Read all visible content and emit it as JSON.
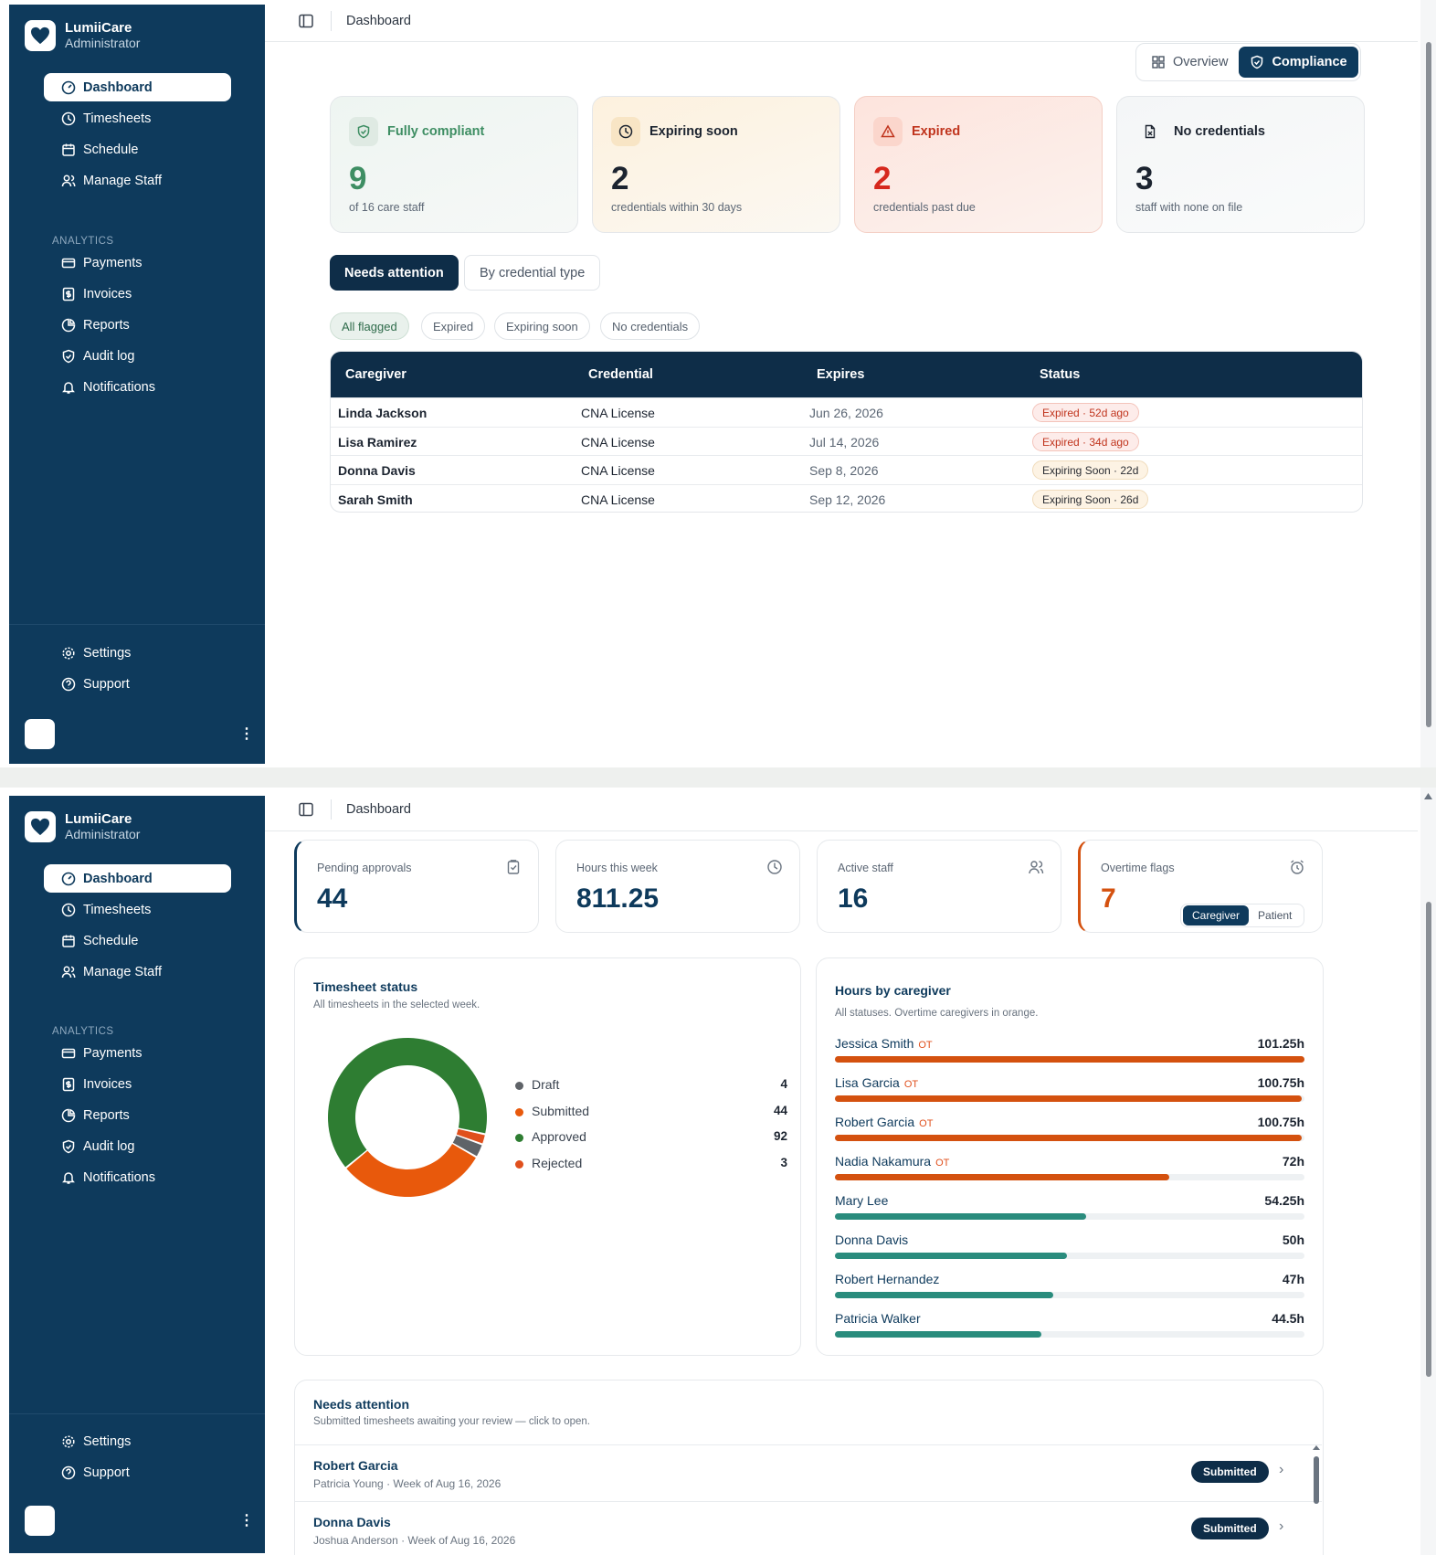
{
  "app": {
    "name": "LumiiCare",
    "role": "Administrator"
  },
  "nav": {
    "dashboard": "Dashboard",
    "timesheets": "Timesheets",
    "schedule": "Schedule",
    "manage_staff": "Manage Staff",
    "analytics_heading": "ANALYTICS",
    "payments": "Payments",
    "invoices": "Invoices",
    "reports": "Reports",
    "audit_log": "Audit log",
    "notifications": "Notifications",
    "settings": "Settings",
    "support": "Support",
    "more_menu": "⋮"
  },
  "header": {
    "breadcrumb": "Dashboard"
  },
  "compliance_view": {
    "view_toggle": {
      "overview": "Overview",
      "compliance": "Compliance",
      "selected": "Compliance"
    },
    "cards": {
      "compliant": {
        "title": "Fully compliant",
        "value": "9",
        "subtitle": "of 16 care staff",
        "color": "#3e8e63"
      },
      "expiring": {
        "title": "Expiring soon",
        "value": "2",
        "subtitle": "credentials within 30 days",
        "color": "#1c2430"
      },
      "expired": {
        "title": "Expired",
        "value": "2",
        "subtitle": "credentials past due",
        "color": "#d6281d"
      },
      "none": {
        "title": "No credentials",
        "value": "3",
        "subtitle": "staff with none on file",
        "color": "#1c2430"
      }
    },
    "tabs": {
      "needs_attention": "Needs attention",
      "by_type": "By credential type",
      "selected": "Needs attention"
    },
    "filters": {
      "all": "All flagged",
      "expired": "Expired",
      "expiring": "Expiring soon",
      "none": "No credentials",
      "selected": "All flagged"
    },
    "table": {
      "headers": {
        "caregiver": "Caregiver",
        "credential": "Credential",
        "expires": "Expires",
        "status": "Status"
      },
      "rows": [
        {
          "caregiver": "Linda Jackson",
          "credential": "CNA License",
          "expires": "Jun 26, 2026",
          "status": "Expired · 52d ago",
          "kind": "expired"
        },
        {
          "caregiver": "Lisa Ramirez",
          "credential": "CNA License",
          "expires": "Jul 14, 2026",
          "status": "Expired · 34d ago",
          "kind": "expired"
        },
        {
          "caregiver": "Donna Davis",
          "credential": "CNA License",
          "expires": "Sep 8, 2026",
          "status": "Expiring Soon · 22d",
          "kind": "expiring"
        },
        {
          "caregiver": "Sarah Smith",
          "credential": "CNA License",
          "expires": "Sep 12, 2026",
          "status": "Expiring Soon · 26d",
          "kind": "expiring"
        }
      ]
    }
  },
  "overview_view": {
    "stats": {
      "pending": {
        "label": "Pending approvals",
        "value": "44",
        "icon": "clipboard-check-icon"
      },
      "hours": {
        "label": "Hours this week",
        "value": "811.25",
        "icon": "clock-icon"
      },
      "staff": {
        "label": "Active staff",
        "value": "16",
        "icon": "users-icon"
      },
      "overtime": {
        "label": "Overtime flags",
        "value": "7",
        "icon": "alarm-icon"
      }
    },
    "timesheet_status": {
      "title": "Timesheet status",
      "subtitle": "All timesheets in the selected week."
    },
    "hours_by_caregiver": {
      "title": "Hours by caregiver",
      "subtitle": "All statuses. Overtime caregivers in orange.",
      "toggle": {
        "caregiver": "Caregiver",
        "patient": "Patient",
        "selected": "Caregiver"
      },
      "ot_label": "OT",
      "max_hours": 101.25,
      "rows": [
        {
          "name": "Jessica Smith",
          "hours": 101.25,
          "hours_label": "101.25h",
          "ot": true
        },
        {
          "name": "Lisa Garcia",
          "hours": 100.75,
          "hours_label": "100.75h",
          "ot": true
        },
        {
          "name": "Robert Garcia",
          "hours": 100.75,
          "hours_label": "100.75h",
          "ot": true
        },
        {
          "name": "Nadia Nakamura",
          "hours": 72,
          "hours_label": "72h",
          "ot": true
        },
        {
          "name": "Mary Lee",
          "hours": 54.25,
          "hours_label": "54.25h",
          "ot": false
        },
        {
          "name": "Donna Davis",
          "hours": 50,
          "hours_label": "50h",
          "ot": false
        },
        {
          "name": "Robert Hernandez",
          "hours": 47,
          "hours_label": "47h",
          "ot": false
        },
        {
          "name": "Patricia Walker",
          "hours": 44.5,
          "hours_label": "44.5h",
          "ot": false
        }
      ]
    },
    "needs_attention": {
      "title": "Needs attention",
      "subtitle": "Submitted timesheets awaiting your review — click to open.",
      "rows": [
        {
          "name": "Robert Garcia",
          "detail": "Patricia Young · Week of Aug 16, 2026",
          "status": "Submitted"
        },
        {
          "name": "Donna Davis",
          "detail": "Joshua Anderson · Week of Aug 16, 2026",
          "status": "Submitted"
        }
      ]
    }
  },
  "chart_data": {
    "type": "pie",
    "donut": true,
    "title": "Timesheet status",
    "categories": [
      "Draft",
      "Submitted",
      "Approved",
      "Rejected"
    ],
    "values": [
      4,
      44,
      92,
      3
    ],
    "colors": [
      "#5f6368",
      "#e8590c",
      "#2e7d32",
      "#e0501d"
    ],
    "legend": "right"
  },
  "colors": {
    "navy": "#0e3a5c",
    "ot_orange": "#d4510f",
    "teal": "#2a8c7d",
    "expired_red": "#d6281d",
    "compliant_green": "#3e8e63"
  }
}
